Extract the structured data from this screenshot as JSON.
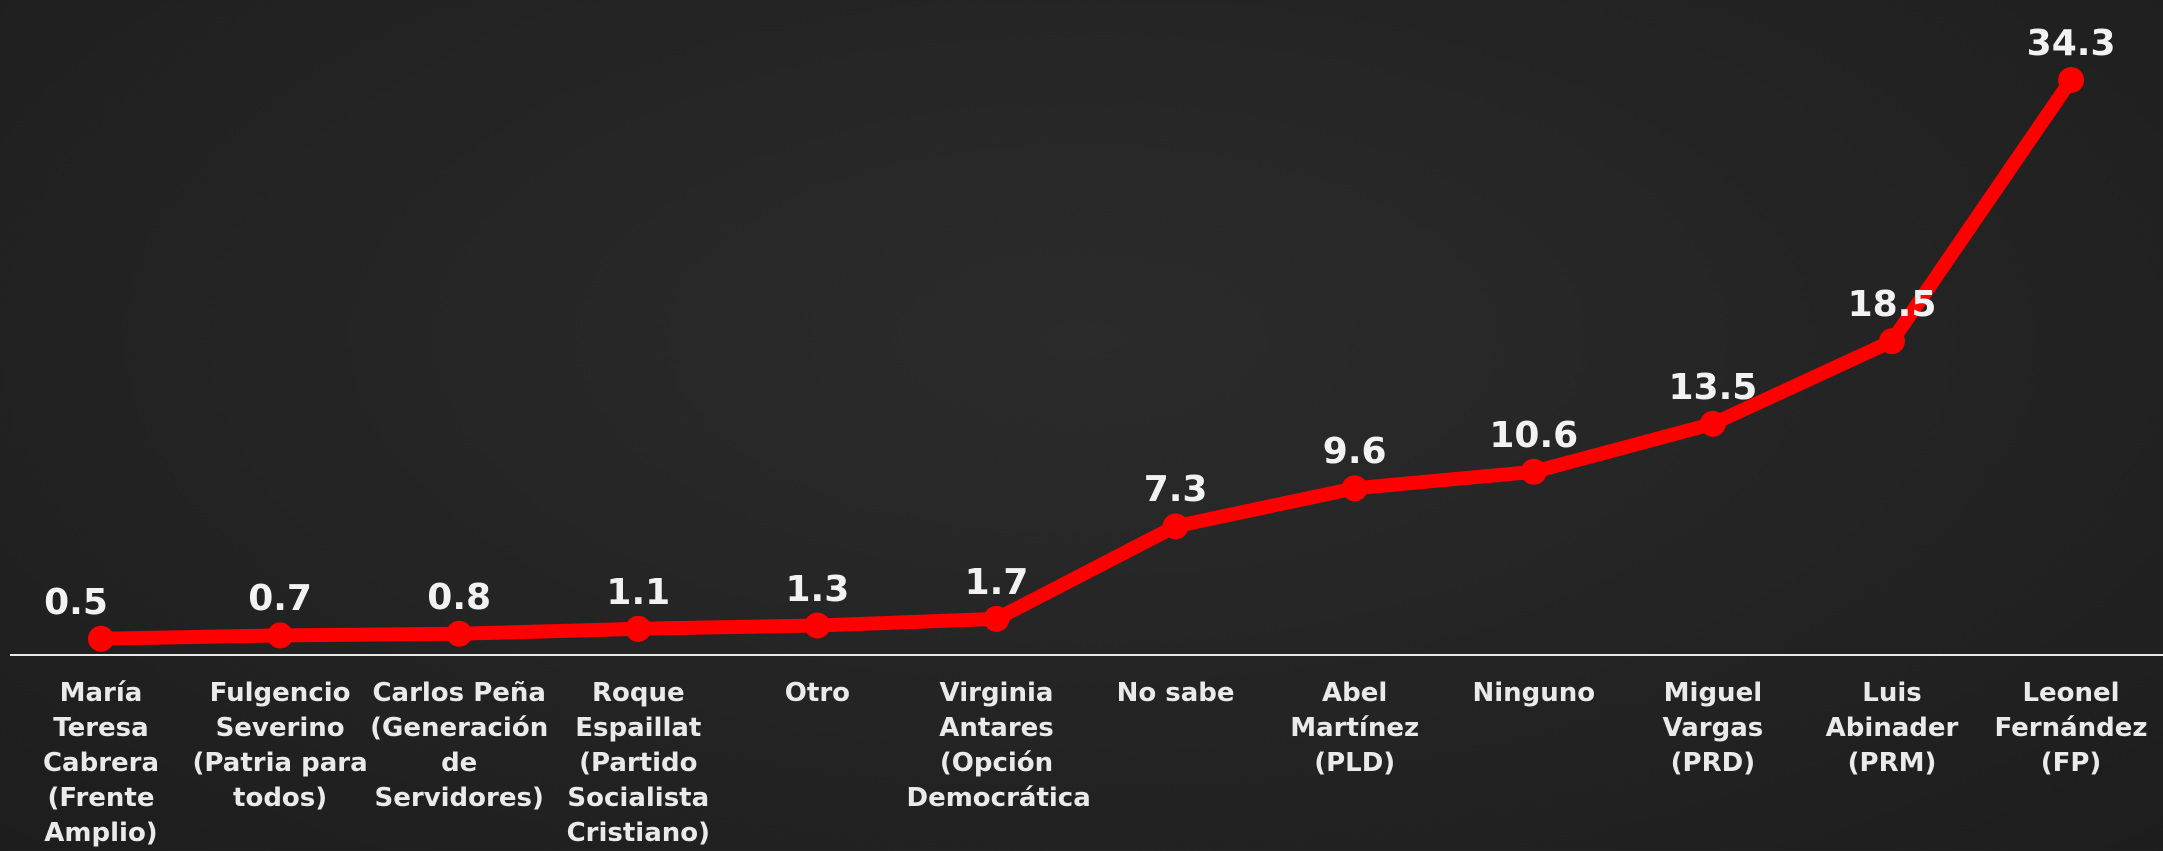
{
  "chart_data": {
    "type": "line",
    "title": "",
    "xlabel": "",
    "ylabel": "",
    "categories": [
      "María Teresa Cabrera (Frente Amplio)",
      "Fulgencio Severino (Patria para todos)",
      "Carlos Peña (Generación de Servidores)",
      "Roque Espaillat (Partido Socialista Cristiano)",
      "Otro",
      "Virginia Antares (Opción Democrática",
      "No sabe",
      "Abel Martínez (PLD)",
      "Ninguno",
      "Miguel Vargas (PRD)",
      "Luis Abinader (PRM)",
      "Leonel Fernández (FP)"
    ],
    "series": [
      {
        "values": [
          0.5,
          0.7,
          0.8,
          1.1,
          1.3,
          1.7,
          7.3,
          9.6,
          10.6,
          13.5,
          18.5,
          34.3
        ],
        "data_labels": [
          "0.5",
          "0.7",
          "0.8",
          "1.1",
          "1.3",
          "1.7",
          "7.3",
          "9.6",
          "10.6",
          "13.5",
          "18.5",
          "34.3"
        ]
      }
    ],
    "ylim": [
      0,
      34.3
    ],
    "grid": false,
    "legend": "none",
    "colors": {
      "line": "#ff0000",
      "baseline": "#e8e8e8",
      "labels": "#f2f2f2",
      "background": "#252525"
    }
  }
}
